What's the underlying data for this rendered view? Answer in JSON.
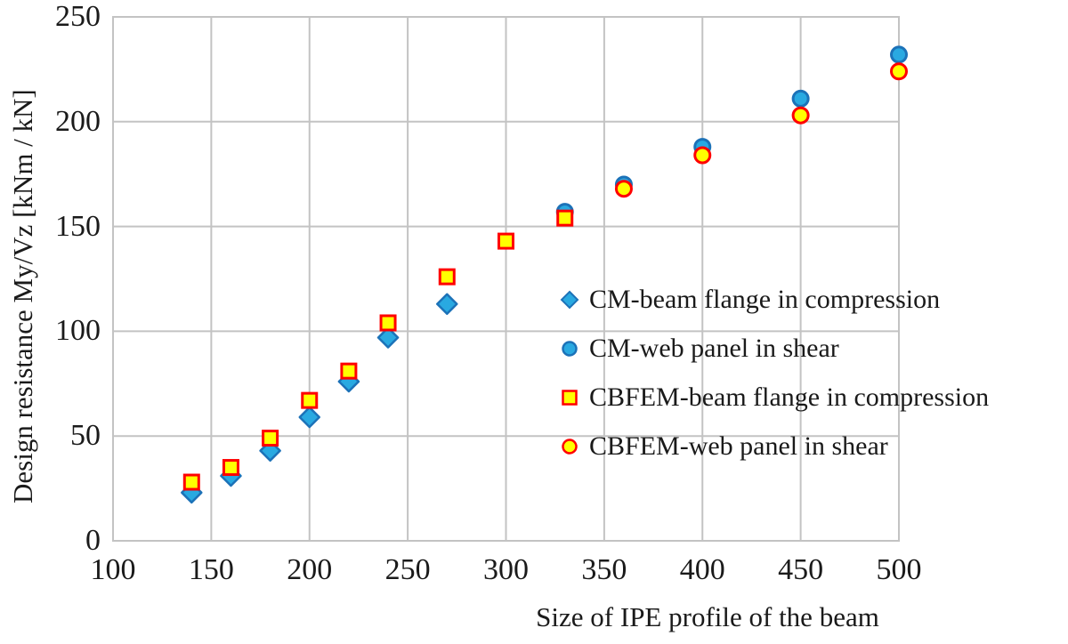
{
  "chart_data": {
    "type": "scatter",
    "title": "",
    "xlabel": "Size of IPE profile of the beam",
    "ylabel": "Design resistance My/Vz [kNm / kN]",
    "xlim": [
      100,
      500
    ],
    "ylim": [
      0,
      250
    ],
    "xticks": [
      100,
      150,
      200,
      250,
      300,
      350,
      400,
      450,
      500
    ],
    "yticks": [
      0,
      50,
      100,
      150,
      200,
      250
    ],
    "grid": true,
    "legend_position": "inside-right",
    "colors": {
      "cm_fill": "#29A9E1",
      "cm_stroke": "#1C72B8",
      "cbfem_fill": "#FFFF00",
      "cbfem_stroke": "#FF0000",
      "gridline": "#C3C3C3",
      "text": "#1a1a1a"
    },
    "series": [
      {
        "name": "CM-beam flange in compression",
        "marker": "diamond",
        "fill": "#29A9E1",
        "stroke": "#1C72B8",
        "points": [
          [
            140,
            23
          ],
          [
            160,
            31
          ],
          [
            180,
            43
          ],
          [
            200,
            59
          ],
          [
            220,
            76
          ],
          [
            240,
            97
          ],
          [
            270,
            113
          ]
        ]
      },
      {
        "name": "CM-web panel in shear",
        "marker": "circle",
        "fill": "#29A9E1",
        "stroke": "#1C72B8",
        "points": [
          [
            330,
            157
          ],
          [
            360,
            170
          ],
          [
            400,
            188
          ],
          [
            450,
            211
          ],
          [
            500,
            232
          ]
        ]
      },
      {
        "name": "CBFEM-beam flange in compression",
        "marker": "square",
        "fill": "#FFFF00",
        "stroke": "#FF0000",
        "points": [
          [
            140,
            28
          ],
          [
            160,
            35
          ],
          [
            180,
            49
          ],
          [
            200,
            67
          ],
          [
            220,
            81
          ],
          [
            240,
            104
          ],
          [
            270,
            126
          ],
          [
            300,
            143
          ],
          [
            330,
            154
          ]
        ]
      },
      {
        "name": "CBFEM-web panel in shear",
        "marker": "circle",
        "fill": "#FFFF00",
        "stroke": "#FF0000",
        "points": [
          [
            360,
            168
          ],
          [
            400,
            184
          ],
          [
            450,
            203
          ],
          [
            500,
            224
          ]
        ]
      }
    ]
  }
}
